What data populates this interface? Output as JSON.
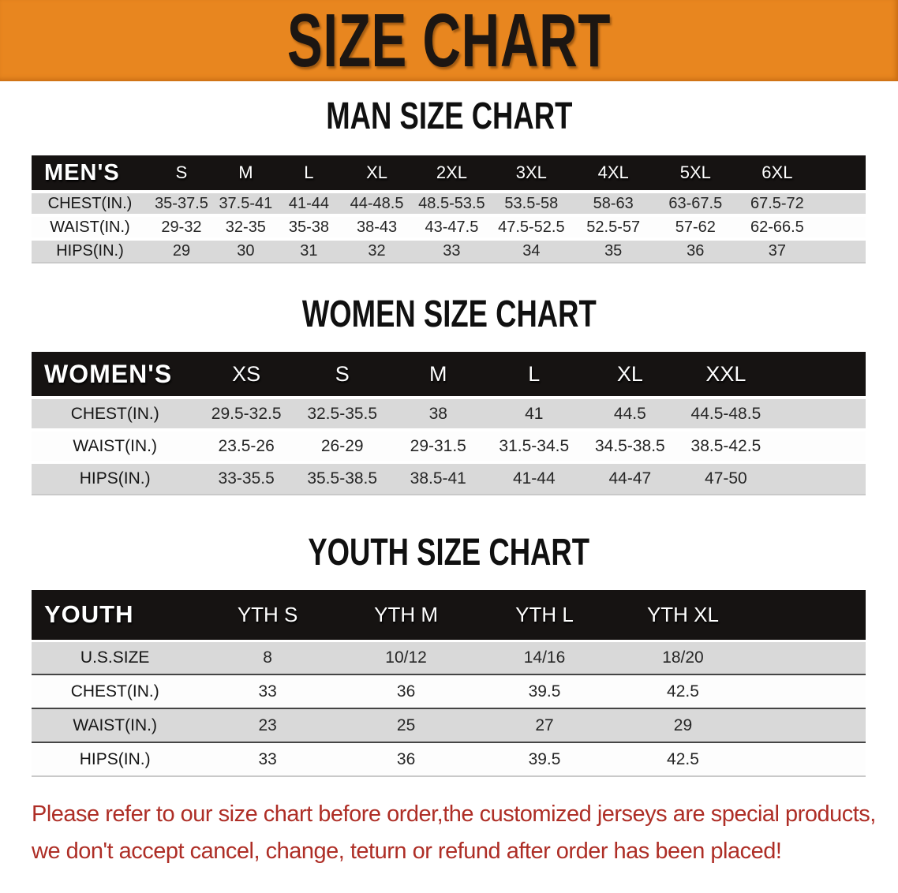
{
  "banner": {
    "title": "SIZE CHART"
  },
  "colors": {
    "banner_orange": "#E8861F",
    "header_black": "#161312",
    "row_gray": "#D9D9D9",
    "note_red": "#AE2E26"
  },
  "sections": {
    "men": {
      "heading": "MAN SIZE CHART",
      "corner_label": "MEN'S",
      "columns": [
        "S",
        "M",
        "L",
        "XL",
        "2XL",
        "3XL",
        "4XL",
        "5XL",
        "6XL"
      ],
      "rows": [
        {
          "label": "CHEST(IN.)",
          "values": [
            "35-37.5",
            "37.5-41",
            "41-44",
            "44-48.5",
            "48.5-53.5",
            "53.5-58",
            "58-63",
            "63-67.5",
            "67.5-72"
          ]
        },
        {
          "label": "WAIST(IN.)",
          "values": [
            "29-32",
            "32-35",
            "35-38",
            "38-43",
            "43-47.5",
            "47.5-52.5",
            "52.5-57",
            "57-62",
            "62-66.5"
          ]
        },
        {
          "label": "HIPS(IN.)",
          "values": [
            "29",
            "30",
            "31",
            "32",
            "33",
            "34",
            "35",
            "36",
            "37"
          ]
        }
      ]
    },
    "women": {
      "heading": "WOMEN SIZE CHART",
      "corner_label": "WOMEN'S",
      "columns": [
        "XS",
        "S",
        "M",
        "L",
        "XL",
        "XXL"
      ],
      "rows": [
        {
          "label": "CHEST(IN.)",
          "values": [
            "29.5-32.5",
            "32.5-35.5",
            "38",
            "41",
            "44.5",
            "44.5-48.5"
          ]
        },
        {
          "label": "WAIST(IN.)",
          "values": [
            "23.5-26",
            "26-29",
            "29-31.5",
            "31.5-34.5",
            "34.5-38.5",
            "38.5-42.5"
          ]
        },
        {
          "label": "HIPS(IN.)",
          "values": [
            "33-35.5",
            "35.5-38.5",
            "38.5-41",
            "41-44",
            "44-47",
            "47-50"
          ]
        }
      ]
    },
    "youth": {
      "heading": "YOUTH SIZE CHART",
      "corner_label": "YOUTH",
      "columns": [
        "YTH S",
        "YTH M",
        "YTH L",
        "YTH XL"
      ],
      "rows": [
        {
          "label": "U.S.SIZE",
          "values": [
            "8",
            "10/12",
            "14/16",
            "18/20"
          ]
        },
        {
          "label": "CHEST(IN.)",
          "values": [
            "33",
            "36",
            "39.5",
            "42.5"
          ]
        },
        {
          "label": "WAIST(IN.)",
          "values": [
            "23",
            "25",
            "27",
            "29"
          ]
        },
        {
          "label": "HIPS(IN.)",
          "values": [
            "33",
            "36",
            "39.5",
            "42.5"
          ]
        }
      ]
    }
  },
  "footer": {
    "line1": "Please refer to our size chart before order,the customized jerseys are special products,",
    "line2": "we don't accept cancel, change, teturn or refund after order has been placed!"
  }
}
